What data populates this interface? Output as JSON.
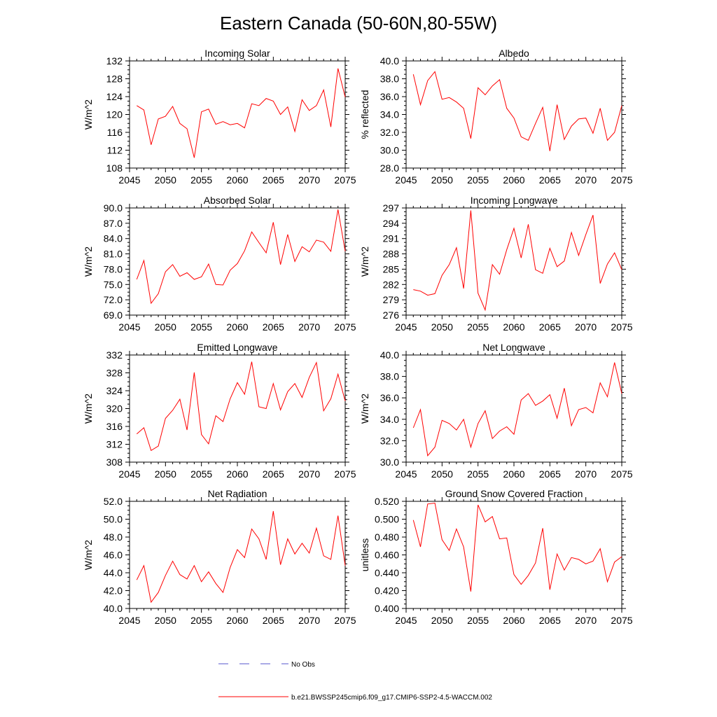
{
  "figure": {
    "title": "Eastern Canada (50-60N,80-55W)",
    "line_color": "#ff0000",
    "obs_color": "#5555cc"
  },
  "legend": {
    "obs_label": "No Obs",
    "model_label": "b.e21.BWSSP245cmip6.f09_g17.CMIP6-SSP2-4.5-WACCM.002"
  },
  "chart_data": [
    {
      "type": "line",
      "title": "Incoming Solar",
      "ylabel": "W/m^2",
      "xlim": [
        2045,
        2075
      ],
      "ylim": [
        108,
        132
      ],
      "xticks": [
        "2045",
        "2050",
        "2055",
        "2060",
        "2065",
        "2070",
        "2075"
      ],
      "yticks": [
        "108",
        "112",
        "116",
        "120",
        "124",
        "128",
        "132"
      ],
      "x": [
        2046,
        2047,
        2048,
        2049,
        2050,
        2051,
        2052,
        2053,
        2054,
        2055,
        2056,
        2057,
        2058,
        2059,
        2060,
        2061,
        2062,
        2063,
        2064,
        2065,
        2066,
        2067,
        2068,
        2069,
        2070,
        2071,
        2072,
        2073,
        2074,
        2075
      ],
      "series": [
        {
          "values": [
            122.0,
            121.0,
            113.2,
            119.0,
            119.6,
            121.8,
            118.0,
            116.8,
            110.3,
            120.6,
            121.2,
            117.8,
            118.4,
            117.7,
            118.0,
            117.0,
            122.4,
            122.0,
            123.6,
            123.0,
            120.0,
            121.7,
            116.2,
            123.3,
            120.9,
            122.0,
            125.5,
            117.2,
            130.3,
            123.9
          ]
        }
      ]
    },
    {
      "type": "line",
      "title": "Albedo",
      "ylabel": "% reflected",
      "xlim": [
        2045,
        2075
      ],
      "ylim": [
        28.0,
        40.0
      ],
      "xticks": [
        "2045",
        "2050",
        "2055",
        "2060",
        "2065",
        "2070",
        "2075"
      ],
      "yticks": [
        "28.0",
        "30.0",
        "32.0",
        "34.0",
        "36.0",
        "38.0",
        "40.0"
      ],
      "x": [
        2046,
        2047,
        2048,
        2049,
        2050,
        2051,
        2052,
        2053,
        2054,
        2055,
        2056,
        2057,
        2058,
        2059,
        2060,
        2061,
        2062,
        2063,
        2064,
        2065,
        2066,
        2067,
        2068,
        2069,
        2070,
        2071,
        2072,
        2073,
        2074,
        2075
      ],
      "series": [
        {
          "values": [
            38.5,
            35.1,
            37.8,
            38.8,
            35.7,
            35.9,
            35.4,
            34.7,
            31.3,
            37.0,
            36.2,
            37.2,
            37.9,
            34.7,
            33.6,
            31.5,
            31.1,
            33.0,
            34.8,
            29.9,
            35.1,
            31.2,
            32.7,
            33.5,
            33.6,
            31.9,
            34.7,
            31.1,
            32.0,
            35.0
          ]
        }
      ]
    },
    {
      "type": "line",
      "title": "Absorbed Solar",
      "ylabel": "W/m^2",
      "xlim": [
        2045,
        2075
      ],
      "ylim": [
        69.0,
        90.0
      ],
      "xticks": [
        "2045",
        "2050",
        "2055",
        "2060",
        "2065",
        "2070",
        "2075"
      ],
      "yticks": [
        "69.0",
        "72.0",
        "75.0",
        "78.0",
        "81.0",
        "84.0",
        "87.0",
        "90.0"
      ],
      "x": [
        2046,
        2047,
        2048,
        2049,
        2050,
        2051,
        2052,
        2053,
        2054,
        2055,
        2056,
        2057,
        2058,
        2059,
        2060,
        2061,
        2062,
        2063,
        2064,
        2065,
        2066,
        2067,
        2068,
        2069,
        2070,
        2071,
        2072,
        2073,
        2074,
        2075
      ],
      "series": [
        {
          "values": [
            76.0,
            79.7,
            71.3,
            73.2,
            77.5,
            78.9,
            76.6,
            77.3,
            76.0,
            76.5,
            79.0,
            75.0,
            74.9,
            77.8,
            79.1,
            81.6,
            85.3,
            83.2,
            81.2,
            87.2,
            78.9,
            84.8,
            79.5,
            82.4,
            81.4,
            83.7,
            83.3,
            81.5,
            89.7,
            81.5
          ]
        }
      ]
    },
    {
      "type": "line",
      "title": "Incoming Longwave",
      "ylabel": "W/m^2",
      "xlim": [
        2045,
        2075
      ],
      "ylim": [
        276,
        297
      ],
      "xticks": [
        "2045",
        "2050",
        "2055",
        "2060",
        "2065",
        "2070",
        "2075"
      ],
      "yticks": [
        "276",
        "279",
        "282",
        "285",
        "288",
        "291",
        "294",
        "297"
      ],
      "x": [
        2046,
        2047,
        2048,
        2049,
        2050,
        2051,
        2052,
        2053,
        2054,
        2055,
        2056,
        2057,
        2058,
        2059,
        2060,
        2061,
        2062,
        2063,
        2064,
        2065,
        2066,
        2067,
        2068,
        2069,
        2070,
        2071,
        2072,
        2073,
        2074,
        2075
      ],
      "series": [
        {
          "values": [
            281.0,
            280.7,
            279.9,
            280.2,
            283.8,
            285.9,
            289.2,
            281.2,
            296.5,
            280.3,
            277.0,
            285.9,
            284.0,
            288.8,
            293.0,
            287.2,
            293.8,
            284.9,
            284.2,
            289.1,
            285.5,
            286.6,
            292.2,
            287.7,
            291.8,
            295.6,
            282.2,
            286.0,
            288.2,
            284.9
          ]
        }
      ]
    },
    {
      "type": "line",
      "title": "Emitted Longwave",
      "ylabel": "W/m^2",
      "xlim": [
        2045,
        2075
      ],
      "ylim": [
        308,
        332
      ],
      "xticks": [
        "2045",
        "2050",
        "2055",
        "2060",
        "2065",
        "2070",
        "2075"
      ],
      "yticks": [
        "308",
        "312",
        "316",
        "320",
        "324",
        "328",
        "332"
      ],
      "x": [
        2046,
        2047,
        2048,
        2049,
        2050,
        2051,
        2052,
        2053,
        2054,
        2055,
        2056,
        2057,
        2058,
        2059,
        2060,
        2061,
        2062,
        2063,
        2064,
        2065,
        2066,
        2067,
        2068,
        2069,
        2070,
        2071,
        2072,
        2073,
        2074,
        2075
      ],
      "series": [
        {
          "values": [
            314.3,
            315.7,
            310.6,
            311.6,
            317.8,
            319.6,
            322.1,
            315.2,
            328.1,
            314.2,
            312.1,
            318.4,
            317.1,
            322.2,
            325.8,
            323.2,
            330.5,
            320.4,
            320.0,
            325.6,
            319.7,
            323.8,
            325.6,
            322.5,
            327.0,
            330.3,
            319.5,
            322.2,
            327.7,
            321.7
          ]
        }
      ]
    },
    {
      "type": "line",
      "title": "Net Longwave",
      "ylabel": "W/m^2",
      "xlim": [
        2045,
        2075
      ],
      "ylim": [
        30.0,
        40.0
      ],
      "xticks": [
        "2045",
        "2050",
        "2055",
        "2060",
        "2065",
        "2070",
        "2075"
      ],
      "yticks": [
        "30.0",
        "32.0",
        "34.0",
        "36.0",
        "38.0",
        "40.0"
      ],
      "x": [
        2046,
        2047,
        2048,
        2049,
        2050,
        2051,
        2052,
        2053,
        2054,
        2055,
        2056,
        2057,
        2058,
        2059,
        2060,
        2061,
        2062,
        2063,
        2064,
        2065,
        2066,
        2067,
        2068,
        2069,
        2070,
        2071,
        2072,
        2073,
        2074,
        2075
      ],
      "series": [
        {
          "values": [
            33.2,
            34.9,
            30.6,
            31.4,
            33.9,
            33.6,
            33.0,
            34.0,
            31.4,
            33.6,
            34.8,
            32.2,
            32.9,
            33.3,
            32.6,
            35.8,
            36.4,
            35.3,
            35.7,
            36.3,
            34.1,
            36.9,
            33.4,
            34.9,
            35.1,
            34.6,
            37.4,
            36.1,
            39.3,
            36.4
          ]
        }
      ]
    },
    {
      "type": "line",
      "title": "Net Radiation",
      "ylabel": "W/m^2",
      "xlim": [
        2045,
        2075
      ],
      "ylim": [
        40.0,
        52.0
      ],
      "xticks": [
        "2045",
        "2050",
        "2055",
        "2060",
        "2065",
        "2070",
        "2075"
      ],
      "yticks": [
        "40.0",
        "42.0",
        "44.0",
        "46.0",
        "48.0",
        "50.0",
        "52.0"
      ],
      "x": [
        2046,
        2047,
        2048,
        2049,
        2050,
        2051,
        2052,
        2053,
        2054,
        2055,
        2056,
        2057,
        2058,
        2059,
        2060,
        2061,
        2062,
        2063,
        2064,
        2065,
        2066,
        2067,
        2068,
        2069,
        2070,
        2071,
        2072,
        2073,
        2074,
        2075
      ],
      "series": [
        {
          "values": [
            43.2,
            44.8,
            40.7,
            41.8,
            43.7,
            45.3,
            43.8,
            43.3,
            44.8,
            43.0,
            44.1,
            42.8,
            41.8,
            44.6,
            46.6,
            45.7,
            48.9,
            47.8,
            45.5,
            50.9,
            44.9,
            47.8,
            46.1,
            47.3,
            46.2,
            49.0,
            45.9,
            45.5,
            50.4,
            44.8
          ]
        }
      ]
    },
    {
      "type": "line",
      "title": "Ground Snow Covered Fraction",
      "ylabel": "unitless",
      "xlim": [
        2045,
        2075
      ],
      "ylim": [
        0.4,
        0.52
      ],
      "xticks": [
        "2045",
        "2050",
        "2055",
        "2060",
        "2065",
        "2070",
        "2075"
      ],
      "yticks": [
        "0.400",
        "0.420",
        "0.440",
        "0.460",
        "0.480",
        "0.500",
        "0.520"
      ],
      "x": [
        2046,
        2047,
        2048,
        2049,
        2050,
        2051,
        2052,
        2053,
        2054,
        2055,
        2056,
        2057,
        2058,
        2059,
        2060,
        2061,
        2062,
        2063,
        2064,
        2065,
        2066,
        2067,
        2068,
        2069,
        2070,
        2071,
        2072,
        2073,
        2074,
        2075
      ],
      "series": [
        {
          "values": [
            0.499,
            0.469,
            0.517,
            0.518,
            0.477,
            0.465,
            0.489,
            0.469,
            0.419,
            0.516,
            0.497,
            0.503,
            0.478,
            0.479,
            0.438,
            0.427,
            0.437,
            0.451,
            0.49,
            0.421,
            0.461,
            0.443,
            0.457,
            0.455,
            0.45,
            0.453,
            0.467,
            0.43,
            0.452,
            0.458
          ]
        }
      ]
    }
  ]
}
